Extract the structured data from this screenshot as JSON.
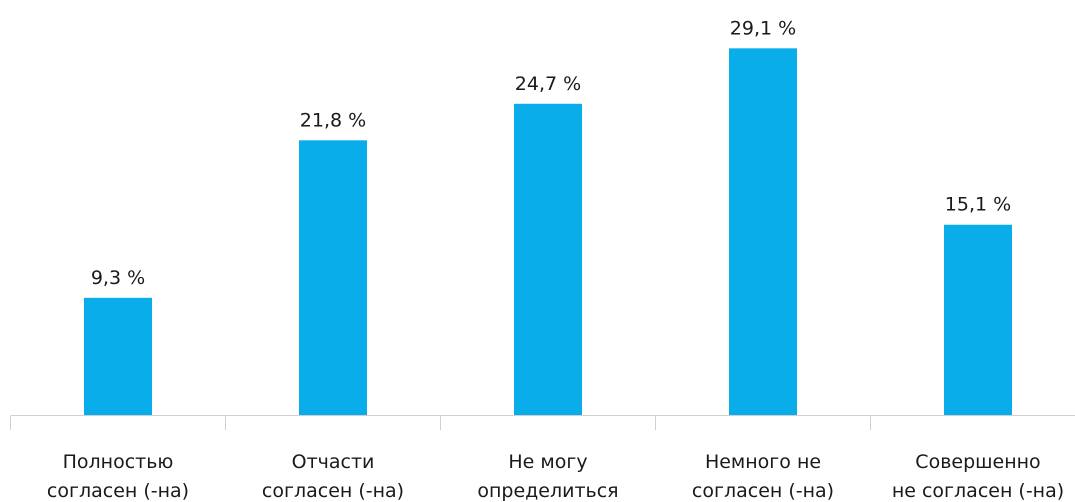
{
  "chart_data": {
    "type": "bar",
    "categories": [
      [
        "Полностью",
        "согласен (-на)"
      ],
      [
        "Отчасти",
        "согласен (-на)"
      ],
      [
        "Не могу",
        "определиться"
      ],
      [
        "Немного не",
        "согласен (-на)"
      ],
      [
        "Совершенно",
        "не согласен (-на)"
      ]
    ],
    "values": [
      9.3,
      21.8,
      24.7,
      29.1,
      15.1
    ],
    "value_labels": [
      "9,3 %",
      "21,8 %",
      "24,7 %",
      "29,1 %",
      "15,1 %"
    ],
    "color": "#08ade9"
  }
}
